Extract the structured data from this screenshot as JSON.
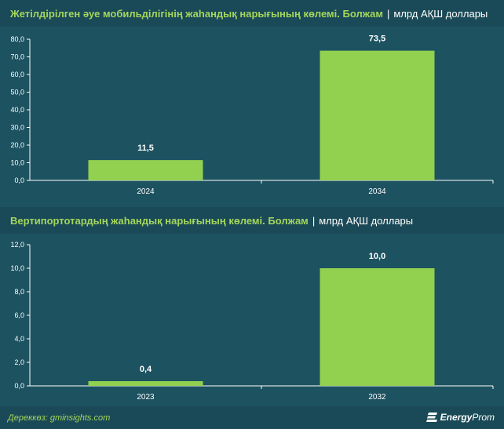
{
  "charts": [
    {
      "title": "Жетілдірілген әуе мобильділігінің жаһандық нарығының көлемі. Болжам",
      "separator": "|",
      "unit": "млрд АҚШ доллары"
    },
    {
      "title": "Вертипортотардың жаһандық нарығының көлемі. Болжам",
      "separator": "|",
      "unit": "млрд АҚШ доллары"
    }
  ],
  "chart_data": [
    {
      "type": "bar",
      "title": "Жетілдірілген әуе мобильділігінің жаһандық нарығының көлемі. Болжам",
      "unit": "млрд АҚШ доллары",
      "categories": [
        "2024",
        "2034"
      ],
      "values": [
        11.5,
        73.5
      ],
      "value_labels": [
        "11,5",
        "73,5"
      ],
      "ylim": [
        0,
        80
      ],
      "yticks": [
        "0,0",
        "10,0",
        "20,0",
        "30,0",
        "40,0",
        "50,0",
        "60,0",
        "70,0",
        "80,0"
      ],
      "grid": false,
      "bar_color": "#92d050"
    },
    {
      "type": "bar",
      "title": "Вертипортотардың жаһандық нарығының көлемі. Болжам",
      "unit": "млрд АҚШ доллары",
      "categories": [
        "2023",
        "2032"
      ],
      "values": [
        0.4,
        10.0
      ],
      "value_labels": [
        "0,4",
        "10,0"
      ],
      "ylim": [
        0,
        12
      ],
      "yticks": [
        "0,0",
        "2,0",
        "4,0",
        "6,0",
        "8,0",
        "10,0",
        "12,0"
      ],
      "grid": false,
      "bar_color": "#92d050"
    }
  ],
  "footer": {
    "source": "Дереккөз: gminsights.com",
    "logo_energy": "Energy",
    "logo_prom": "Prom"
  },
  "colors": {
    "background": "#1d5260",
    "title_bar": "#1a4a57",
    "accent": "#a4d65e",
    "bar": "#92d050",
    "axis": "#ffffff"
  }
}
